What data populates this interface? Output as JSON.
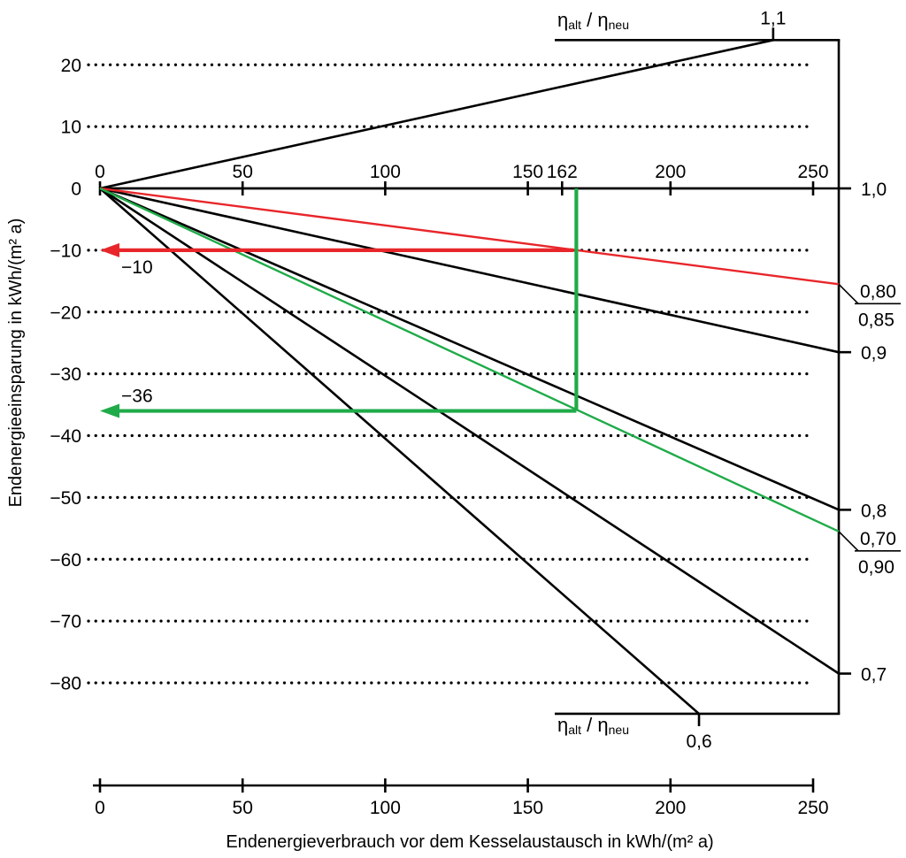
{
  "chart_data": {
    "type": "line",
    "title": "",
    "xlabel": "Endenergieverbrauch vor dem Kesselaustausch in kWh/(m² a)",
    "ylabel": "Endenergieeinsparung in kWh/(m² a)",
    "xlim": [
      0,
      259
    ],
    "ylim": [
      -85,
      24
    ],
    "x_ticks": [
      {
        "value": 0,
        "label": "0"
      },
      {
        "value": 50,
        "label": "50"
      },
      {
        "value": 100,
        "label": "100"
      },
      {
        "value": 150,
        "label": "150"
      },
      {
        "value": 200,
        "label": "200"
      },
      {
        "value": 250,
        "label": "250"
      }
    ],
    "x_ticks_top": [
      {
        "value": 0,
        "label": "0"
      },
      {
        "value": 50,
        "label": "50"
      },
      {
        "value": 100,
        "label": "100"
      },
      {
        "value": 150,
        "label": "150"
      },
      {
        "value": 162,
        "label": "162"
      },
      {
        "value": 200,
        "label": "200"
      },
      {
        "value": 250,
        "label": "250"
      }
    ],
    "y_ticks": [
      {
        "value": 20,
        "label": "20"
      },
      {
        "value": 10,
        "label": "10"
      },
      {
        "value": 0,
        "label": "0"
      },
      {
        "value": -10,
        "label": "−10"
      },
      {
        "value": -20,
        "label": "−20"
      },
      {
        "value": -30,
        "label": "−30"
      },
      {
        "value": -40,
        "label": "−40"
      },
      {
        "value": -50,
        "label": "−50"
      },
      {
        "value": -60,
        "label": "−60"
      },
      {
        "value": -70,
        "label": "−70"
      },
      {
        "value": -80,
        "label": "−80"
      }
    ],
    "grid": "dotted horizontal",
    "eta_axis_label": {
      "eta": "η",
      "old": "alt",
      "sep": "/",
      "new": "neu"
    },
    "series": [
      {
        "label": "1,1",
        "color": "#000000",
        "label_side": "top",
        "points": [
          [
            0,
            0
          ],
          [
            236,
            24
          ]
        ]
      },
      {
        "label": "1,0",
        "color": "#000000",
        "label_side": "right",
        "points": [
          [
            0,
            0
          ],
          [
            259,
            0
          ]
        ]
      },
      {
        "label": "0,9",
        "color": "#000000",
        "label_side": "right",
        "points": [
          [
            0,
            0
          ],
          [
            259,
            -26.5
          ]
        ]
      },
      {
        "label": "0,8",
        "color": "#000000",
        "label_side": "right",
        "points": [
          [
            0,
            0
          ],
          [
            259,
            -52
          ]
        ]
      },
      {
        "label": "0,7",
        "color": "#000000",
        "label_side": "right",
        "points": [
          [
            0,
            0
          ],
          [
            259,
            -78.5
          ]
        ]
      },
      {
        "label": "0,6",
        "color": "#000000",
        "label_side": "bottom",
        "points": [
          [
            0,
            0
          ],
          [
            210,
            -85
          ]
        ]
      },
      {
        "label_top": "0,80",
        "label_bottom": "0,85",
        "color": "#e8262a",
        "label_side": "right",
        "points": [
          [
            0,
            0
          ],
          [
            259,
            -15.5
          ]
        ]
      },
      {
        "label_top": "0,70",
        "label_bottom": "0,90",
        "color": "#1fab49",
        "label_side": "right",
        "points": [
          [
            0,
            0
          ],
          [
            259,
            -55.5
          ]
        ]
      }
    ],
    "annotations": [
      {
        "type": "arrow",
        "color": "#e8262a",
        "from": [
          166,
          -10
        ],
        "to": [
          0,
          -10
        ],
        "label": "−10"
      },
      {
        "type": "vertical",
        "color": "#1fab49",
        "x": 167,
        "from_y": 0,
        "to_y": -36
      },
      {
        "type": "arrow",
        "color": "#1fab49",
        "from": [
          167,
          -36
        ],
        "to": [
          0,
          -36
        ],
        "label": "−36"
      }
    ]
  },
  "colors": {
    "accent_red": "#e8262a",
    "accent_green": "#1fab49",
    "ink": "#000000"
  }
}
